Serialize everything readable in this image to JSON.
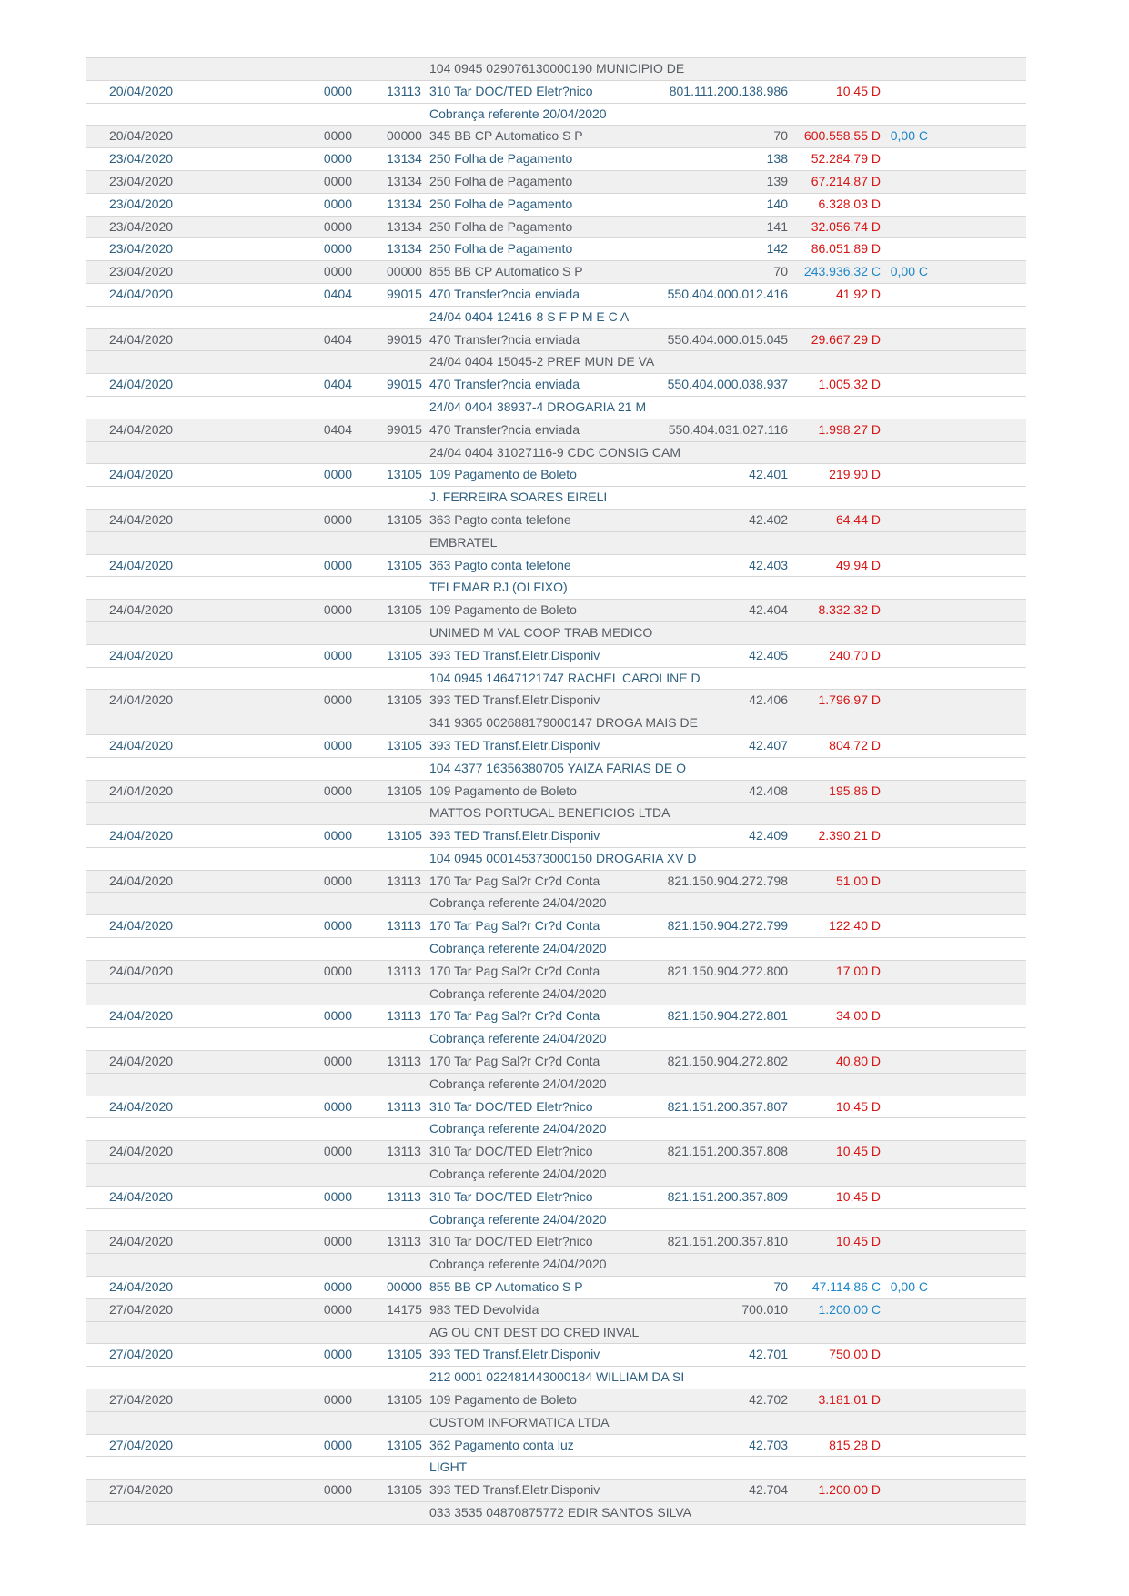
{
  "document": {
    "kind": "bank-statement-extract",
    "colors": {
      "debit": "#d61414",
      "credit": "#1b86cb",
      "text_on_white_rows": "#2d5f80",
      "text_on_gray_rows": "#565c63",
      "stripe": "#f0f0f0",
      "divider": "#d6d6d6",
      "page_background": "#ffffff"
    }
  },
  "statement_table": {
    "rows": [
      {
        "type": "detail",
        "shade": "gray",
        "text": "104 0945 029076130000190 MUNICIPIO DE"
      },
      {
        "type": "main",
        "shade": "white",
        "date": "20/04/2020",
        "agency": "0000",
        "code": "13113",
        "description": "310 Tar DOC/TED Eletr?nico",
        "document": "801.111.200.138.986",
        "value": "10,45",
        "dc": "D"
      },
      {
        "type": "detail",
        "shade": "white",
        "text": "Cobrança referente 20/04/2020"
      },
      {
        "type": "main",
        "shade": "gray",
        "date": "20/04/2020",
        "agency": "0000",
        "code": "00000",
        "description": "345 BB CP Automatico S P",
        "document": "70",
        "value": "600.558,55",
        "dc": "D",
        "balance": "0,00",
        "balance_dc": "C"
      },
      {
        "type": "main",
        "shade": "white",
        "date": "23/04/2020",
        "agency": "0000",
        "code": "13134",
        "description": "250 Folha de Pagamento",
        "document": "138",
        "value": "52.284,79",
        "dc": "D"
      },
      {
        "type": "main",
        "shade": "gray",
        "date": "23/04/2020",
        "agency": "0000",
        "code": "13134",
        "description": "250 Folha de Pagamento",
        "document": "139",
        "value": "67.214,87",
        "dc": "D"
      },
      {
        "type": "main",
        "shade": "white",
        "date": "23/04/2020",
        "agency": "0000",
        "code": "13134",
        "description": "250 Folha de Pagamento",
        "document": "140",
        "value": "6.328,03",
        "dc": "D"
      },
      {
        "type": "main",
        "shade": "gray",
        "date": "23/04/2020",
        "agency": "0000",
        "code": "13134",
        "description": "250 Folha de Pagamento",
        "document": "141",
        "value": "32.056,74",
        "dc": "D"
      },
      {
        "type": "main",
        "shade": "white",
        "date": "23/04/2020",
        "agency": "0000",
        "code": "13134",
        "description": "250 Folha de Pagamento",
        "document": "142",
        "value": "86.051,89",
        "dc": "D"
      },
      {
        "type": "main",
        "shade": "gray",
        "date": "23/04/2020",
        "agency": "0000",
        "code": "00000",
        "description": "855 BB CP Automatico S P",
        "document": "70",
        "value": "243.936,32",
        "dc": "C",
        "balance": "0,00",
        "balance_dc": "C"
      },
      {
        "type": "main",
        "shade": "white",
        "date": "24/04/2020",
        "agency": "0404",
        "code": "99015",
        "description": "470 Transfer?ncia enviada",
        "document": "550.404.000.012.416",
        "value": "41,92",
        "dc": "D"
      },
      {
        "type": "detail",
        "shade": "white",
        "text": "24/04 0404 12416-8 S F P M E C A"
      },
      {
        "type": "main",
        "shade": "gray",
        "date": "24/04/2020",
        "agency": "0404",
        "code": "99015",
        "description": "470 Transfer?ncia enviada",
        "document": "550.404.000.015.045",
        "value": "29.667,29",
        "dc": "D"
      },
      {
        "type": "detail",
        "shade": "gray",
        "text": "24/04 0404 15045-2 PREF MUN DE VA"
      },
      {
        "type": "main",
        "shade": "white",
        "date": "24/04/2020",
        "agency": "0404",
        "code": "99015",
        "description": "470 Transfer?ncia enviada",
        "document": "550.404.000.038.937",
        "value": "1.005,32",
        "dc": "D"
      },
      {
        "type": "detail",
        "shade": "white",
        "text": "24/04 0404 38937-4 DROGARIA 21 M"
      },
      {
        "type": "main",
        "shade": "gray",
        "date": "24/04/2020",
        "agency": "0404",
        "code": "99015",
        "description": "470 Transfer?ncia enviada",
        "document": "550.404.031.027.116",
        "value": "1.998,27",
        "dc": "D"
      },
      {
        "type": "detail",
        "shade": "gray",
        "text": "24/04 0404 31027116-9 CDC CONSIG CAM"
      },
      {
        "type": "main",
        "shade": "white",
        "date": "24/04/2020",
        "agency": "0000",
        "code": "13105",
        "description": "109 Pagamento de Boleto",
        "document": "42.401",
        "value": "219,90",
        "dc": "D"
      },
      {
        "type": "detail",
        "shade": "white",
        "text": "J. FERREIRA SOARES EIRELI"
      },
      {
        "type": "main",
        "shade": "gray",
        "date": "24/04/2020",
        "agency": "0000",
        "code": "13105",
        "description": "363 Pagto conta telefone",
        "document": "42.402",
        "value": "64,44",
        "dc": "D"
      },
      {
        "type": "detail",
        "shade": "gray",
        "text": "EMBRATEL"
      },
      {
        "type": "main",
        "shade": "white",
        "date": "24/04/2020",
        "agency": "0000",
        "code": "13105",
        "description": "363 Pagto conta telefone",
        "document": "42.403",
        "value": "49,94",
        "dc": "D"
      },
      {
        "type": "detail",
        "shade": "white",
        "text": "TELEMAR RJ (OI FIXO)"
      },
      {
        "type": "main",
        "shade": "gray",
        "date": "24/04/2020",
        "agency": "0000",
        "code": "13105",
        "description": "109 Pagamento de Boleto",
        "document": "42.404",
        "value": "8.332,32",
        "dc": "D"
      },
      {
        "type": "detail",
        "shade": "gray",
        "text": "UNIMED M VAL COOP TRAB MEDICO"
      },
      {
        "type": "main",
        "shade": "white",
        "date": "24/04/2020",
        "agency": "0000",
        "code": "13105",
        "description": "393 TED Transf.Eletr.Disponiv",
        "document": "42.405",
        "value": "240,70",
        "dc": "D"
      },
      {
        "type": "detail",
        "shade": "white",
        "text": "104 0945 14647121747 RACHEL CAROLINE D"
      },
      {
        "type": "main",
        "shade": "gray",
        "date": "24/04/2020",
        "agency": "0000",
        "code": "13105",
        "description": "393 TED Transf.Eletr.Disponiv",
        "document": "42.406",
        "value": "1.796,97",
        "dc": "D"
      },
      {
        "type": "detail",
        "shade": "gray",
        "text": "341 9365 002688179000147 DROGA MAIS DE"
      },
      {
        "type": "main",
        "shade": "white",
        "date": "24/04/2020",
        "agency": "0000",
        "code": "13105",
        "description": "393 TED Transf.Eletr.Disponiv",
        "document": "42.407",
        "value": "804,72",
        "dc": "D"
      },
      {
        "type": "detail",
        "shade": "white",
        "text": "104 4377 16356380705 YAIZA FARIAS DE O"
      },
      {
        "type": "main",
        "shade": "gray",
        "date": "24/04/2020",
        "agency": "0000",
        "code": "13105",
        "description": "109 Pagamento de Boleto",
        "document": "42.408",
        "value": "195,86",
        "dc": "D"
      },
      {
        "type": "detail",
        "shade": "gray",
        "text": "MATTOS PORTUGAL BENEFICIOS LTDA"
      },
      {
        "type": "main",
        "shade": "white",
        "date": "24/04/2020",
        "agency": "0000",
        "code": "13105",
        "description": "393 TED Transf.Eletr.Disponiv",
        "document": "42.409",
        "value": "2.390,21",
        "dc": "D"
      },
      {
        "type": "detail",
        "shade": "white",
        "text": "104 0945 000145373000150 DROGARIA XV D"
      },
      {
        "type": "main",
        "shade": "gray",
        "date": "24/04/2020",
        "agency": "0000",
        "code": "13113",
        "description": "170 Tar Pag Sal?r Cr?d Conta",
        "document": "821.150.904.272.798",
        "value": "51,00",
        "dc": "D"
      },
      {
        "type": "detail",
        "shade": "gray",
        "text": "Cobrança referente 24/04/2020"
      },
      {
        "type": "main",
        "shade": "white",
        "date": "24/04/2020",
        "agency": "0000",
        "code": "13113",
        "description": "170 Tar Pag Sal?r Cr?d Conta",
        "document": "821.150.904.272.799",
        "value": "122,40",
        "dc": "D"
      },
      {
        "type": "detail",
        "shade": "white",
        "text": "Cobrança referente 24/04/2020"
      },
      {
        "type": "main",
        "shade": "gray",
        "date": "24/04/2020",
        "agency": "0000",
        "code": "13113",
        "description": "170 Tar Pag Sal?r Cr?d Conta",
        "document": "821.150.904.272.800",
        "value": "17,00",
        "dc": "D"
      },
      {
        "type": "detail",
        "shade": "gray",
        "text": "Cobrança referente 24/04/2020"
      },
      {
        "type": "main",
        "shade": "white",
        "date": "24/04/2020",
        "agency": "0000",
        "code": "13113",
        "description": "170 Tar Pag Sal?r Cr?d Conta",
        "document": "821.150.904.272.801",
        "value": "34,00",
        "dc": "D"
      },
      {
        "type": "detail",
        "shade": "white",
        "text": "Cobrança referente 24/04/2020"
      },
      {
        "type": "main",
        "shade": "gray",
        "date": "24/04/2020",
        "agency": "0000",
        "code": "13113",
        "description": "170 Tar Pag Sal?r Cr?d Conta",
        "document": "821.150.904.272.802",
        "value": "40,80",
        "dc": "D"
      },
      {
        "type": "detail",
        "shade": "gray",
        "text": "Cobrança referente 24/04/2020"
      },
      {
        "type": "main",
        "shade": "white",
        "date": "24/04/2020",
        "agency": "0000",
        "code": "13113",
        "description": "310 Tar DOC/TED Eletr?nico",
        "document": "821.151.200.357.807",
        "value": "10,45",
        "dc": "D"
      },
      {
        "type": "detail",
        "shade": "white",
        "text": "Cobrança referente 24/04/2020"
      },
      {
        "type": "main",
        "shade": "gray",
        "date": "24/04/2020",
        "agency": "0000",
        "code": "13113",
        "description": "310 Tar DOC/TED Eletr?nico",
        "document": "821.151.200.357.808",
        "value": "10,45",
        "dc": "D"
      },
      {
        "type": "detail",
        "shade": "gray",
        "text": "Cobrança referente 24/04/2020"
      },
      {
        "type": "main",
        "shade": "white",
        "date": "24/04/2020",
        "agency": "0000",
        "code": "13113",
        "description": "310 Tar DOC/TED Eletr?nico",
        "document": "821.151.200.357.809",
        "value": "10,45",
        "dc": "D"
      },
      {
        "type": "detail",
        "shade": "white",
        "text": "Cobrança referente 24/04/2020"
      },
      {
        "type": "main",
        "shade": "gray",
        "date": "24/04/2020",
        "agency": "0000",
        "code": "13113",
        "description": "310 Tar DOC/TED Eletr?nico",
        "document": "821.151.200.357.810",
        "value": "10,45",
        "dc": "D"
      },
      {
        "type": "detail",
        "shade": "gray",
        "text": "Cobrança referente 24/04/2020"
      },
      {
        "type": "main",
        "shade": "white",
        "date": "24/04/2020",
        "agency": "0000",
        "code": "00000",
        "description": "855 BB CP Automatico S P",
        "document": "70",
        "value": "47.114,86",
        "dc": "C",
        "balance": "0,00",
        "balance_dc": "C"
      },
      {
        "type": "main",
        "shade": "gray",
        "date": "27/04/2020",
        "agency": "0000",
        "code": "14175",
        "description": "983 TED Devolvida",
        "document": "700.010",
        "value": "1.200,00",
        "dc": "C"
      },
      {
        "type": "detail",
        "shade": "gray",
        "text": "AG OU CNT DEST DO CRED INVAL"
      },
      {
        "type": "main",
        "shade": "white",
        "date": "27/04/2020",
        "agency": "0000",
        "code": "13105",
        "description": "393 TED Transf.Eletr.Disponiv",
        "document": "42.701",
        "value": "750,00",
        "dc": "D"
      },
      {
        "type": "detail",
        "shade": "white",
        "text": "212 0001 022481443000184 WILLIAM DA SI"
      },
      {
        "type": "main",
        "shade": "gray",
        "date": "27/04/2020",
        "agency": "0000",
        "code": "13105",
        "description": "109 Pagamento de Boleto",
        "document": "42.702",
        "value": "3.181,01",
        "dc": "D"
      },
      {
        "type": "detail",
        "shade": "gray",
        "text": "CUSTOM INFORMATICA LTDA"
      },
      {
        "type": "main",
        "shade": "white",
        "date": "27/04/2020",
        "agency": "0000",
        "code": "13105",
        "description": "362 Pagamento conta luz",
        "document": "42.703",
        "value": "815,28",
        "dc": "D"
      },
      {
        "type": "detail",
        "shade": "white",
        "text": "LIGHT"
      },
      {
        "type": "main",
        "shade": "gray",
        "date": "27/04/2020",
        "agency": "0000",
        "code": "13105",
        "description": "393 TED Transf.Eletr.Disponiv",
        "document": "42.704",
        "value": "1.200,00",
        "dc": "D"
      },
      {
        "type": "detail",
        "shade": "gray",
        "text": "033 3535 04870875772 EDIR SANTOS SILVA"
      }
    ]
  }
}
